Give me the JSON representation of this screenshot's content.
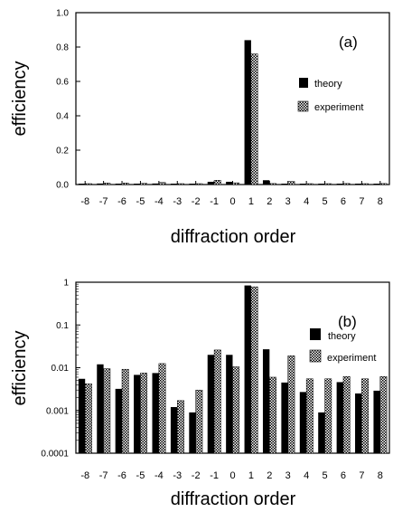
{
  "chart_data": [
    {
      "type": "bar",
      "panel_label": "(a)",
      "xlabel": "diffraction order",
      "ylabel": "efficiency",
      "yscale": "linear",
      "ylim": [
        0,
        1.0
      ],
      "ytick_labels": [
        "1.0",
        "0.8",
        "0.6",
        "0.4",
        "0.2",
        "0.0"
      ],
      "categories": [
        "-8",
        "-7",
        "-6",
        "-5",
        "-4",
        "-3",
        "-2",
        "-1",
        "0",
        "1",
        "2",
        "3",
        "4",
        "5",
        "6",
        "7",
        "8"
      ],
      "legend_position": "center-right",
      "series": [
        {
          "name": "theory",
          "pattern": "solid-black",
          "values": [
            0.003,
            0.006,
            0.004,
            0.004,
            0.006,
            0.001,
            0.001,
            0.016,
            0.016,
            0.84,
            0.025,
            0.004,
            0.003,
            0.001,
            0.004,
            0.003,
            0.003
          ]
        },
        {
          "name": "experiment",
          "pattern": "checkered",
          "values": [
            0.004,
            0.009,
            0.009,
            0.007,
            0.012,
            0.002,
            0.003,
            0.025,
            0.01,
            0.76,
            0.006,
            0.018,
            0.005,
            0.005,
            0.006,
            0.005,
            0.006
          ]
        }
      ]
    },
    {
      "type": "bar",
      "panel_label": "(b)",
      "xlabel": "diffraction order",
      "ylabel": "efficiency",
      "yscale": "log",
      "ylim": [
        0.0001,
        1
      ],
      "ytick_labels": [
        "1",
        "0.1",
        "0.01",
        "0.001",
        "0.0001"
      ],
      "categories": [
        "-8",
        "-7",
        "-6",
        "-5",
        "-4",
        "-3",
        "-2",
        "-1",
        "0",
        "1",
        "2",
        "3",
        "4",
        "5",
        "6",
        "7",
        "8"
      ],
      "legend_position": "center-right",
      "series": [
        {
          "name": "theory",
          "pattern": "solid-black",
          "values": [
            0.0055,
            0.012,
            0.0032,
            0.0068,
            0.0075,
            0.0012,
            0.0009,
            0.02,
            0.02,
            0.84,
            0.027,
            0.0045,
            0.0027,
            0.0009,
            0.0046,
            0.0025,
            0.0029
          ]
        },
        {
          "name": "experiment",
          "pattern": "checkered",
          "values": [
            0.0042,
            0.0095,
            0.0092,
            0.0075,
            0.0125,
            0.0017,
            0.003,
            0.026,
            0.0105,
            0.78,
            0.006,
            0.019,
            0.0055,
            0.0055,
            0.0062,
            0.0055,
            0.0062
          ]
        }
      ]
    }
  ]
}
